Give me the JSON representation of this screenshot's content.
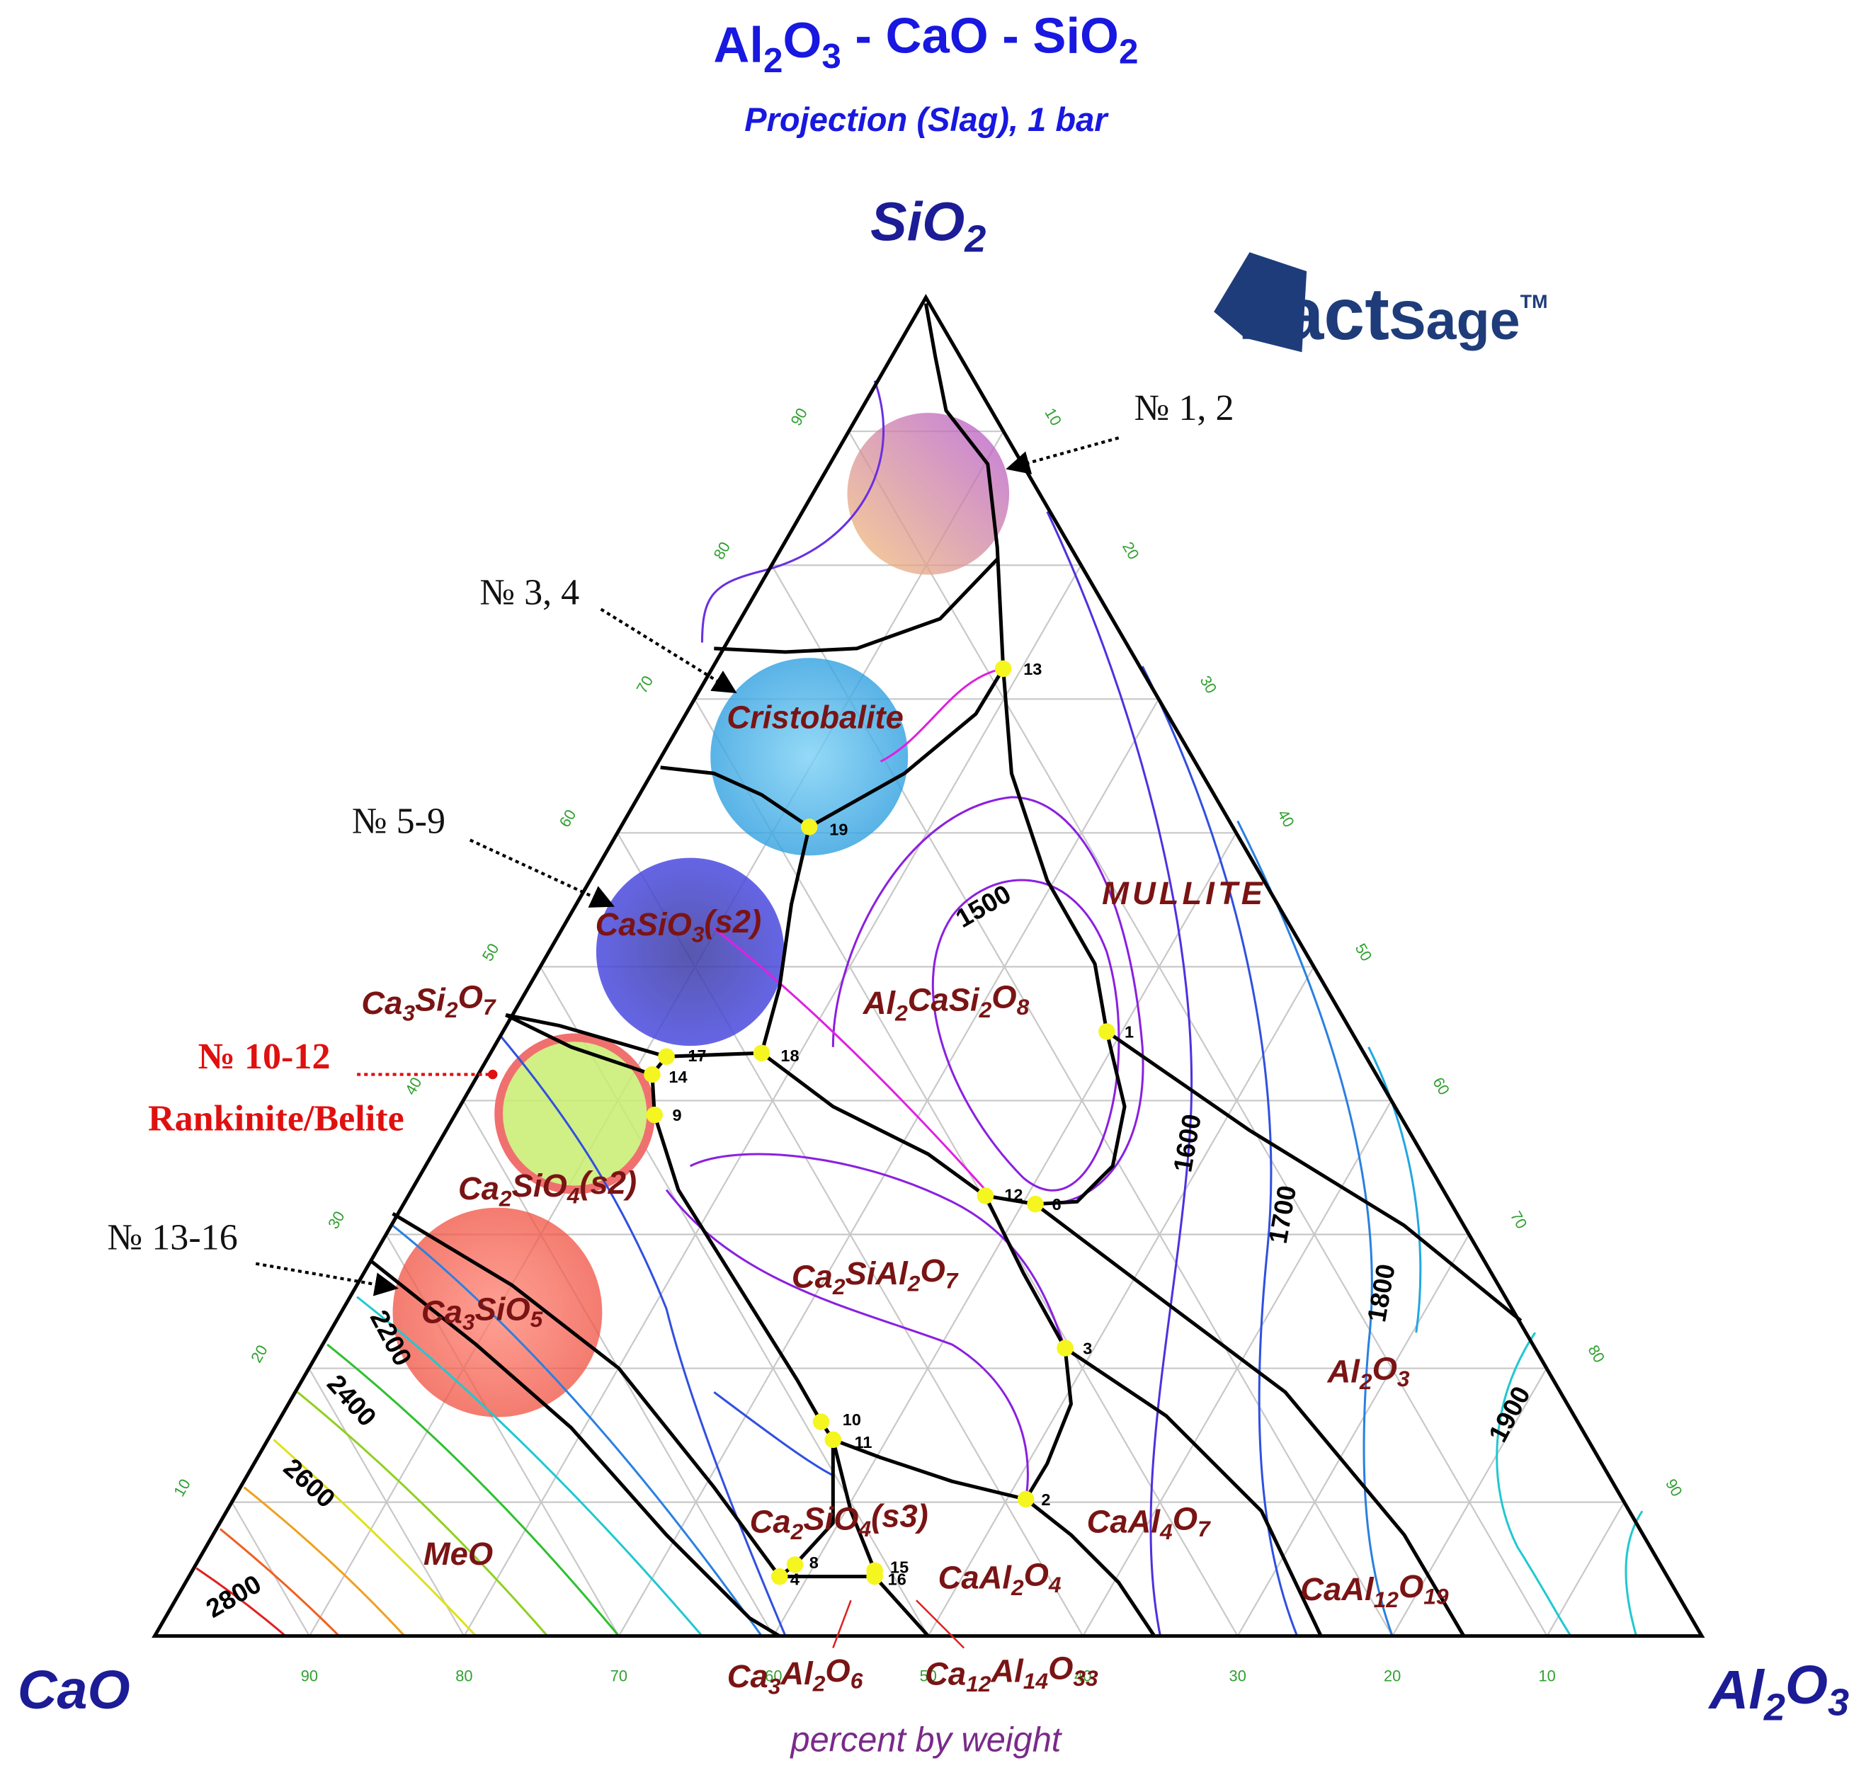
{
  "title": "Al2O3 - CaO - SiO2",
  "subtitle": "Projection (Slag),  1 bar",
  "logo": {
    "brand": "Fact",
    "name": "Sage",
    "mark": "TM"
  },
  "corners": {
    "top": "SiO2",
    "left": "CaO",
    "right": "Al2O3"
  },
  "axis_note": "percent by weight",
  "axes": {
    "cao_ticks": [
      10,
      20,
      30,
      40,
      50,
      60,
      70,
      80,
      90
    ],
    "sio2_ticks": [
      10,
      20,
      30,
      40,
      50,
      60,
      70,
      80,
      90
    ],
    "al2o3_ticks": [
      10,
      20,
      30,
      40,
      50,
      60,
      70,
      80,
      90
    ]
  },
  "phases": [
    "Cristobalite",
    "MULLITE",
    "CaSiO3(s2)",
    "Al2CaSi2O8",
    "Ca3Si2O7",
    "Ca2SiO4(s2)",
    "Ca2SiAl2O7",
    "Ca3SiO5",
    "Al2O3",
    "CaAl4O7",
    "Ca2SiO4(s3)",
    "MeO",
    "CaAl2O4",
    "CaAl12O19",
    "Ca3Al2O6",
    "Ca12Al14O33"
  ],
  "isotherms": [
    1500,
    1600,
    1700,
    1800,
    1900,
    2200,
    2400,
    2600,
    2800
  ],
  "points": [
    1,
    2,
    3,
    4,
    6,
    8,
    9,
    10,
    11,
    12,
    13,
    14,
    15,
    16,
    17,
    18,
    19
  ],
  "annotations": [
    {
      "text": "№ 1, 2"
    },
    {
      "text": "№ 3, 4"
    },
    {
      "text": "№ 5-9"
    },
    {
      "text": "№ 10-12",
      "note": "Rankinite/Belite"
    },
    {
      "text": "№ 13-16"
    }
  ]
}
